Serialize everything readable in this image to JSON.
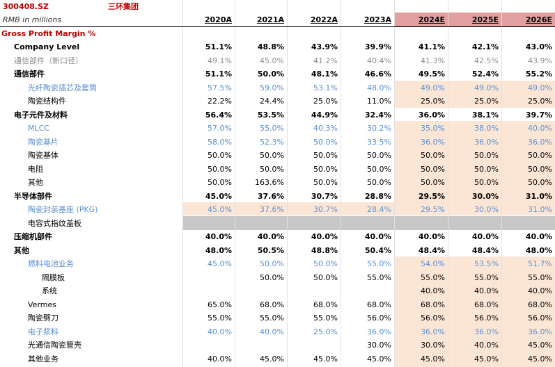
{
  "header": {
    "ticker": "300408.SZ",
    "company": "三环集团",
    "unit": "RMB in millions",
    "years": [
      "2020A",
      "2021A",
      "2022A",
      "2023A",
      "2024E",
      "2025E",
      "2026E"
    ]
  },
  "section_title": "Gross Profit Margin %",
  "rows": [
    {
      "label": "Company Level",
      "style": "bold",
      "indent": 1,
      "values": [
        "51.1%",
        "48.8%",
        "43.9%",
        "39.9%",
        "41.1%",
        "42.1%",
        "43.0%"
      ]
    },
    {
      "label": "通信部件（新口径）",
      "style": "grey",
      "indent": 1,
      "values": [
        "49.1%",
        "45.0%",
        "41.2%",
        "40.4%",
        "41.3%",
        "42.5%",
        "43.9%"
      ]
    },
    {
      "label": "通信部件",
      "style": "bold",
      "indent": 1,
      "values": [
        "51.1%",
        "50.0%",
        "48.1%",
        "46.6%",
        "49.5%",
        "52.4%",
        "55.2%"
      ]
    },
    {
      "label": "光纤陶瓷插芯及套筒",
      "style": "blue",
      "indent": 2,
      "values": [
        "57.5%",
        "59.0%",
        "53.1%",
        "48.0%",
        "49.0%",
        "49.0%",
        "49.0%"
      ]
    },
    {
      "label": "陶瓷结构件",
      "style": "normal",
      "indent": 2,
      "values": [
        "22.2%",
        "24.4%",
        "25.0%",
        "11.0%",
        "25.0%",
        "25.0%",
        "25.0%"
      ]
    },
    {
      "label": "电子元件及材料",
      "style": "bold",
      "indent": 1,
      "values": [
        "56.4%",
        "53.5%",
        "44.9%",
        "32.4%",
        "36.0%",
        "38.1%",
        "39.7%"
      ]
    },
    {
      "label": "MLCC",
      "style": "blue",
      "indent": 2,
      "values": [
        "57.0%",
        "55.0%",
        "40.3%",
        "30.2%",
        "35.0%",
        "38.0%",
        "40.0%"
      ]
    },
    {
      "label": "陶瓷基片",
      "style": "blue",
      "indent": 2,
      "values": [
        "58.0%",
        "52.3%",
        "50.0%",
        "33.5%",
        "36.0%",
        "36.0%",
        "36.0%"
      ]
    },
    {
      "label": "陶瓷基体",
      "style": "normal",
      "indent": 2,
      "values": [
        "50.0%",
        "50.0%",
        "50.0%",
        "50.0%",
        "50.0%",
        "50.0%",
        "50.0%"
      ]
    },
    {
      "label": "电阻",
      "style": "normal",
      "indent": 2,
      "values": [
        "50.0%",
        "50.0%",
        "50.0%",
        "50.0%",
        "50.0%",
        "50.0%",
        "50.0%"
      ]
    },
    {
      "label": "其他",
      "style": "normal",
      "indent": 2,
      "values": [
        "50.0%",
        "163.6%",
        "50.0%",
        "50.0%",
        "50.0%",
        "50.0%",
        "50.0%"
      ]
    },
    {
      "label": "半导体部件",
      "style": "bold",
      "indent": 1,
      "values": [
        "45.0%",
        "37.6%",
        "30.7%",
        "28.8%",
        "29.5%",
        "30.0%",
        "31.0%"
      ]
    },
    {
      "label": "陶瓷封装基座 (PKG)",
      "style": "blue",
      "indent": 2,
      "values": [
        "45.0%",
        "37.6%",
        "30.7%",
        "28.4%",
        "29.5%",
        "30.0%",
        "31.0%"
      ]
    },
    {
      "label": "电容式指纹盖板",
      "style": "normal",
      "indent": 2,
      "values": [
        "",
        "",
        "",
        "",
        "",
        "",
        ""
      ]
    },
    {
      "label": "压缩机部件",
      "style": "bold",
      "indent": 1,
      "values": [
        "40.0%",
        "40.0%",
        "40.0%",
        "40.0%",
        "40.0%",
        "40.0%",
        "40.0%"
      ]
    },
    {
      "label": "其他",
      "style": "bold",
      "indent": 1,
      "values": [
        "48.0%",
        "50.5%",
        "48.8%",
        "50.4%",
        "48.4%",
        "48.4%",
        "48.0%"
      ]
    },
    {
      "label": "燃料电池业务",
      "style": "blue",
      "indent": 2,
      "values": [
        "45.0%",
        "50.0%",
        "50.0%",
        "55.0%",
        "54.0%",
        "53.5%",
        "51.7%"
      ]
    },
    {
      "label": "隔膜板",
      "style": "normal",
      "indent": 3,
      "values": [
        "",
        "50.0%",
        "50.0%",
        "55.0%",
        "55.0%",
        "55.0%",
        "55.0%"
      ]
    },
    {
      "label": "系统",
      "style": "normal",
      "indent": 3,
      "values": [
        "",
        "",
        "",
        "",
        "40.0%",
        "40.0%",
        "40.0%"
      ]
    },
    {
      "label": "Vermes",
      "style": "normal",
      "indent": 2,
      "values": [
        "65.0%",
        "68.0%",
        "68.0%",
        "68.0%",
        "68.0%",
        "68.0%",
        "68.0%"
      ]
    },
    {
      "label": "陶瓷劈刀",
      "style": "normal",
      "indent": 2,
      "values": [
        "55.0%",
        "55.0%",
        "55.0%",
        "56.0%",
        "56.0%",
        "56.0%",
        "56.0%"
      ]
    },
    {
      "label": "电子浆料",
      "style": "blue",
      "indent": 2,
      "values": [
        "40.0%",
        "40.0%",
        "25.0%",
        "36.0%",
        "36.0%",
        "36.0%",
        "36.0%"
      ]
    },
    {
      "label": "光通信陶瓷管壳",
      "style": "normal",
      "indent": 2,
      "values": [
        "",
        "",
        "",
        "30.0%",
        "30.0%",
        "40.0%",
        "45.0%"
      ]
    },
    {
      "label": "其他业务",
      "style": "normal",
      "indent": 2,
      "values": [
        "40.0%",
        "45.0%",
        "45.0%",
        "45.0%",
        "45.0%",
        "45.0%",
        "45.0%"
      ]
    }
  ],
  "colors": {
    "red_text": "#c00000",
    "estimate_header": "#e3a0a0",
    "estimate_fill": "#fbe6d6",
    "blue_text": "#5b8fd2",
    "grey_text": "#8c8c8c",
    "blank_band": "#c7c7c7"
  }
}
